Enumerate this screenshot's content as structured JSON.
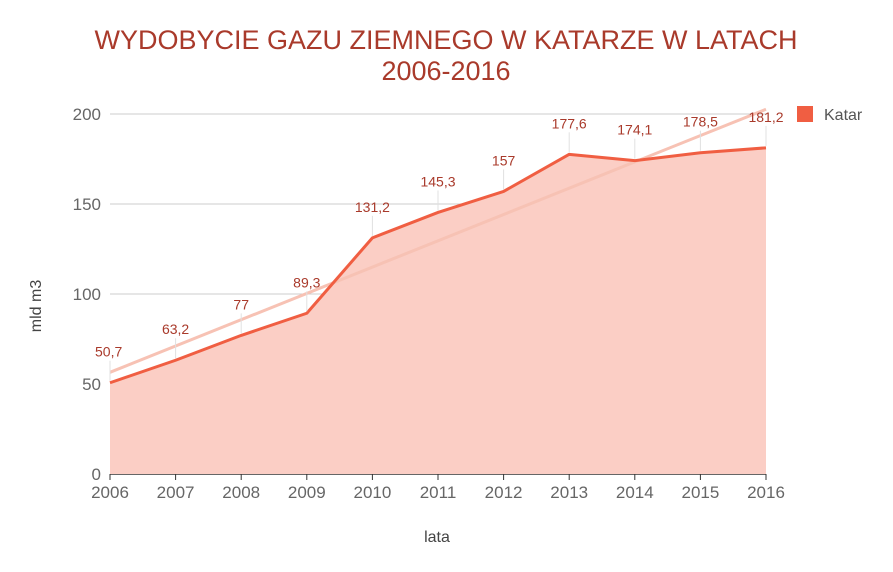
{
  "chart_data": {
    "type": "area",
    "title_lines": [
      "WYDOBYCIE GAZU ZIEMNEGO W KATARZE W LATACH",
      "2006-2016"
    ],
    "xlabel": "lata",
    "ylabel": "mld m3",
    "ylim": [
      0,
      200
    ],
    "yticks": [
      0,
      50,
      100,
      150,
      200
    ],
    "grid": true,
    "legend_position": "top-right",
    "categories": [
      "2006",
      "2007",
      "2008",
      "2009",
      "2010",
      "2011",
      "2012",
      "2013",
      "2014",
      "2015",
      "2016"
    ],
    "series": [
      {
        "name": "Katar",
        "values": [
          50.7,
          63.2,
          77,
          89.3,
          131.2,
          145.3,
          157,
          177.6,
          174.1,
          178.5,
          181.2
        ],
        "value_labels": [
          "50,7",
          "63,2",
          "77",
          "89,3",
          "131,2",
          "145,3",
          "157",
          "177,6",
          "174,1",
          "178,5",
          "181,2"
        ],
        "line_color": "#f05e42",
        "fill_color": "#fbcec5"
      }
    ],
    "trendline": {
      "type": "linear",
      "color": "#f7c2b4"
    }
  }
}
